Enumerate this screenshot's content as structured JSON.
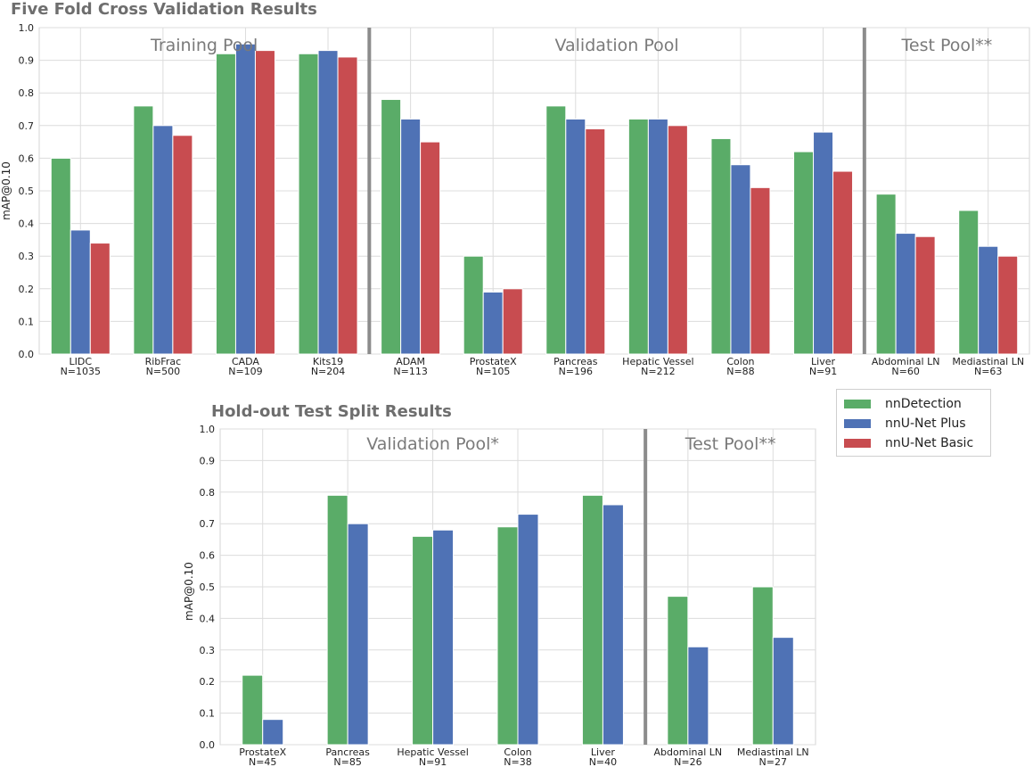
{
  "chart_data": [
    {
      "type": "bar",
      "title": "Five Fold Cross Validation Results",
      "ylabel": "mAP@0.10",
      "xlabel": "",
      "ylim": [
        0,
        1.0
      ],
      "yticks": [
        "0.0",
        "0.1",
        "0.2",
        "0.3",
        "0.4",
        "0.5",
        "0.6",
        "0.7",
        "0.8",
        "0.9",
        "1.0"
      ],
      "categories": [
        "LIDC",
        "RibFrac",
        "CADA",
        "Kits19",
        "ADAM",
        "ProstateX",
        "Pancreas",
        "Hepatic Vessel",
        "Colon",
        "Liver",
        "Abdominal LN",
        "Mediastinal LN"
      ],
      "sample_sizes": [
        "N=1035",
        "N=500",
        "N=109",
        "N=204",
        "N=113",
        "N=105",
        "N=196",
        "N=212",
        "N=88",
        "N=91",
        "N=60",
        "N=63"
      ],
      "series": [
        {
          "name": "nnDetection",
          "values": [
            0.6,
            0.76,
            0.92,
            0.92,
            0.78,
            0.3,
            0.76,
            0.72,
            0.66,
            0.62,
            0.49,
            0.44
          ]
        },
        {
          "name": "nnU-Net Plus",
          "values": [
            0.38,
            0.7,
            0.95,
            0.93,
            0.72,
            0.19,
            0.72,
            0.72,
            0.58,
            0.68,
            0.37,
            0.33
          ]
        },
        {
          "name": "nnU-Net Basic",
          "values": [
            0.34,
            0.67,
            0.93,
            0.91,
            0.65,
            0.2,
            0.69,
            0.7,
            0.51,
            0.56,
            0.36,
            0.3
          ]
        }
      ],
      "pools": [
        {
          "label": "Training Pool",
          "start": 0,
          "end": 3
        },
        {
          "label": "Validation Pool",
          "start": 4,
          "end": 9
        },
        {
          "label": "Test Pool**",
          "start": 10,
          "end": 11
        }
      ],
      "grid": true
    },
    {
      "type": "bar",
      "title": "Hold-out Test Split Results",
      "ylabel": "mAP@0.10",
      "xlabel": "",
      "ylim": [
        0,
        1.0
      ],
      "yticks": [
        "0.0",
        "0.1",
        "0.2",
        "0.3",
        "0.4",
        "0.5",
        "0.6",
        "0.7",
        "0.8",
        "0.9",
        "1.0"
      ],
      "categories": [
        "ProstateX",
        "Pancreas",
        "Hepatic Vessel",
        "Colon",
        "Liver",
        "Abdominal LN",
        "Mediastinal LN"
      ],
      "sample_sizes": [
        "N=45",
        "N=85",
        "N=91",
        "N=38",
        "N=40",
        "N=26",
        "N=27"
      ],
      "series": [
        {
          "name": "nnDetection",
          "values": [
            0.22,
            0.79,
            0.66,
            0.69,
            0.79,
            0.47,
            0.5
          ]
        },
        {
          "name": "nnU-Net Plus",
          "values": [
            0.08,
            0.7,
            0.68,
            0.73,
            0.76,
            0.31,
            0.34
          ]
        }
      ],
      "pools": [
        {
          "label": "Validation Pool*",
          "start": 0,
          "end": 4
        },
        {
          "label": "Test Pool**",
          "start": 5,
          "end": 6
        }
      ],
      "grid": true
    }
  ],
  "legend": {
    "items": [
      {
        "label": "nnDetection",
        "color": "#5aac68"
      },
      {
        "label": "nnU-Net Plus",
        "color": "#4f72b5"
      },
      {
        "label": "nnU-Net Basic",
        "color": "#c84c50"
      }
    ]
  }
}
